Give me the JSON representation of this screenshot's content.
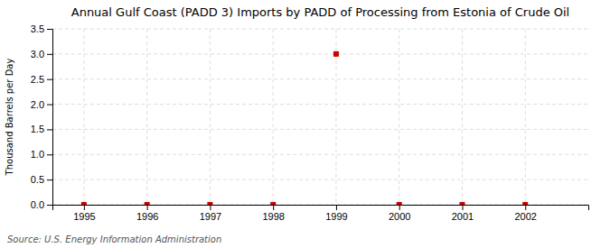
{
  "chart_data": {
    "type": "scatter",
    "title": "Annual Gulf Coast (PADD 3) Imports by PADD of Processing from Estonia of Crude Oil",
    "y_label": "Thousand Barrels per Day",
    "annotations": [
      "Source: U.S. Energy Information Administration"
    ],
    "x": [
      1995,
      1996,
      1997,
      1998,
      2000,
      2001,
      2002,
      1999
    ],
    "values": [
      0.0,
      0.0,
      0.0,
      0.0,
      0.0,
      0.0,
      0.0,
      3.0
    ],
    "color": "#cc0000",
    "marker": "square",
    "xlim": [
      1994.5,
      2003.0
    ],
    "ylim": [
      0.0,
      3.5
    ],
    "xticks": [
      1995,
      1996,
      1997,
      1998,
      1999,
      2000,
      2001,
      2002
    ],
    "yticks": [
      {
        "value": 0.0,
        "label": "0.0"
      },
      0.5,
      {
        "value": 1.0,
        "label": "1.0"
      },
      1.5,
      {
        "value": 2.0,
        "label": "2.0"
      },
      2.5,
      {
        "value": 3.0,
        "label": "3.0"
      },
      3.5
    ],
    "grid": true
  }
}
